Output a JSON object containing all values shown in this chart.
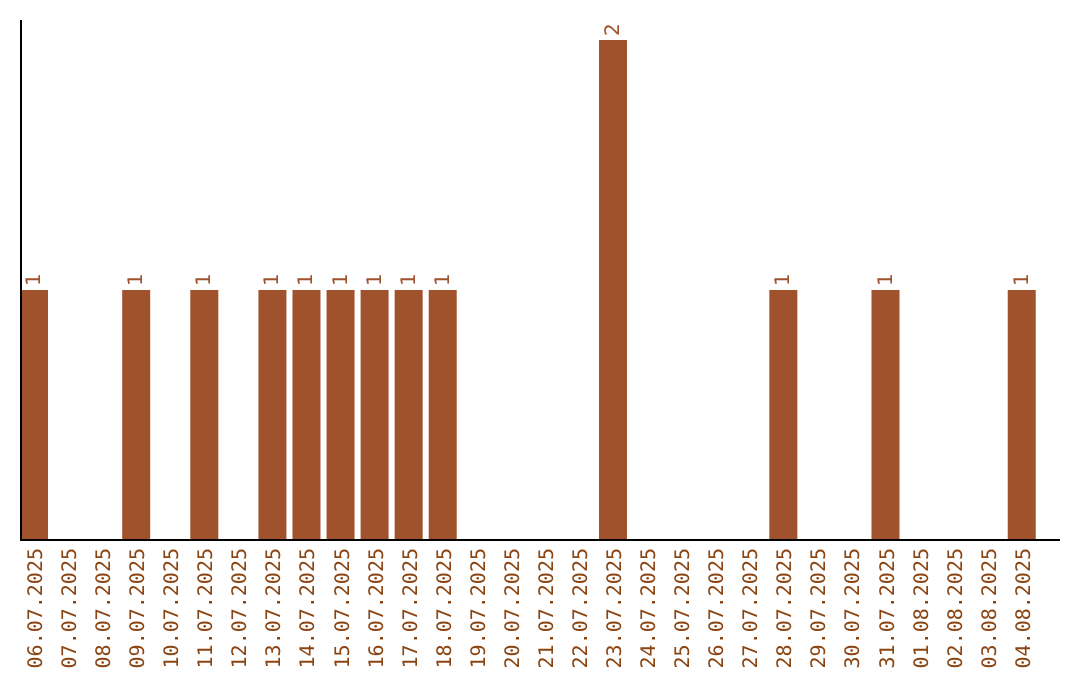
{
  "chart_data": {
    "type": "bar",
    "categories": [
      "06.07.2025",
      "07.07.2025",
      "08.07.2025",
      "09.07.2025",
      "10.07.2025",
      "11.07.2025",
      "12.07.2025",
      "13.07.2025",
      "14.07.2025",
      "15.07.2025",
      "16.07.2025",
      "17.07.2025",
      "18.07.2025",
      "19.07.2025",
      "20.07.2025",
      "21.07.2025",
      "22.07.2025",
      "23.07.2025",
      "24.07.2025",
      "25.07.2025",
      "26.07.2025",
      "27.07.2025",
      "28.07.2025",
      "29.07.2025",
      "30.07.2025",
      "31.07.2025",
      "01.08.2025",
      "02.08.2025",
      "03.08.2025",
      "04.08.2025"
    ],
    "values": [
      1,
      0,
      0,
      1,
      0,
      1,
      0,
      1,
      1,
      1,
      1,
      1,
      1,
      0,
      0,
      0,
      0,
      2,
      0,
      0,
      0,
      0,
      1,
      0,
      0,
      1,
      0,
      0,
      0,
      1
    ],
    "value_labels": [
      "1",
      null,
      null,
      "1",
      null,
      "1",
      null,
      "1",
      "1",
      "1",
      "1",
      "1",
      "1",
      null,
      null,
      null,
      null,
      "2",
      null,
      null,
      null,
      null,
      "1",
      null,
      null,
      "1",
      null,
      null,
      null,
      "1"
    ],
    "color": "#a0522d",
    "ylim": [
      0,
      2.08
    ],
    "tick_labels": "x"
  }
}
